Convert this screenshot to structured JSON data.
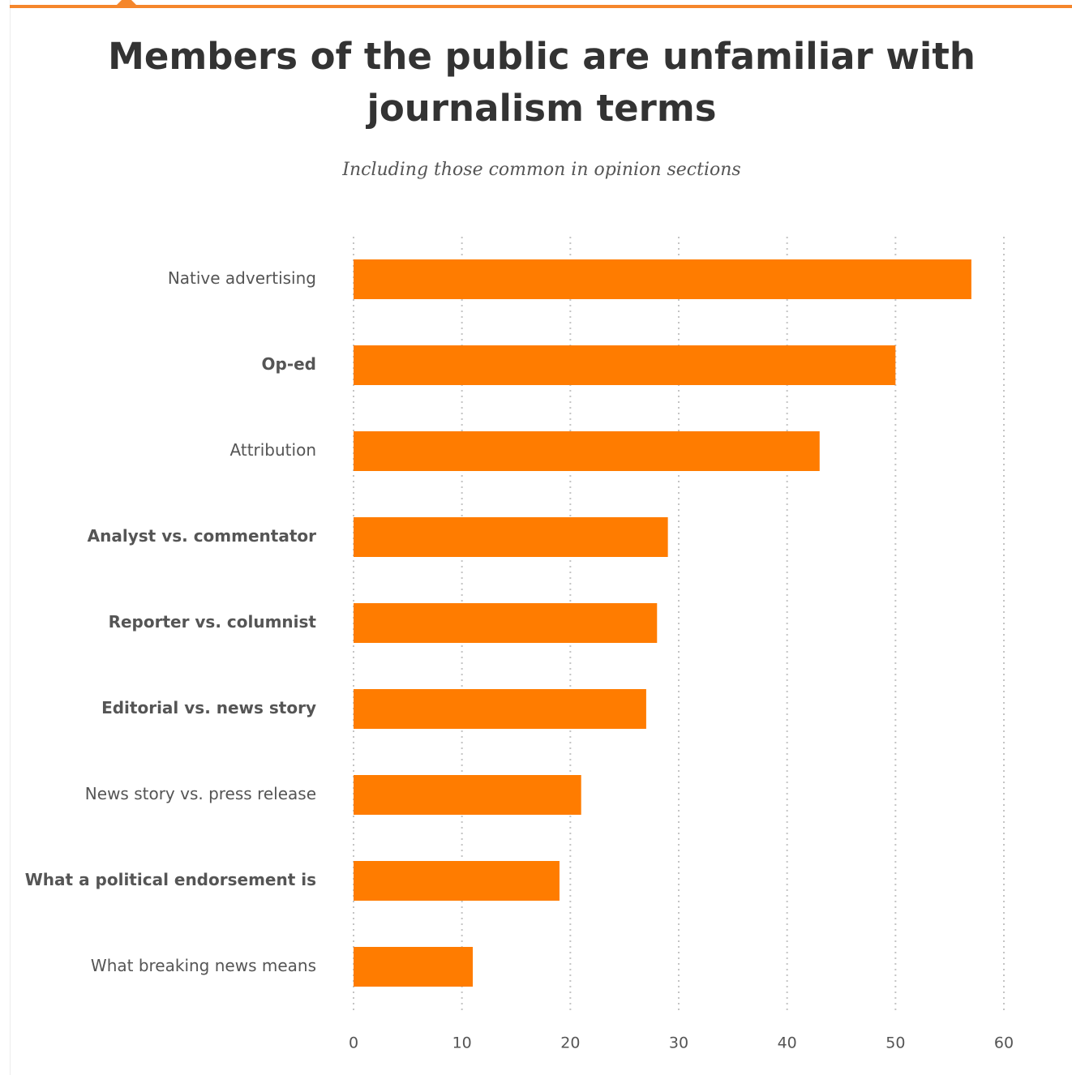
{
  "chart_data": {
    "type": "bar",
    "orientation": "horizontal",
    "title": "Members of the public are unfamiliar with journalism terms",
    "subtitle": "Including those common in opinion sections",
    "categories": [
      "Native advertising",
      "Op-ed",
      "Attribution",
      "Analyst vs. commentator",
      "Reporter vs. columnist",
      "Editorial vs. news story",
      "News story vs. press release",
      "What a political endorsement is",
      "What breaking news means"
    ],
    "emphasized_categories": [
      "Op-ed",
      "Analyst vs. commentator",
      "Reporter vs. columnist",
      "Editorial vs. news story",
      "What a political endorsement is"
    ],
    "values": [
      57,
      50,
      43,
      29,
      28,
      27,
      21,
      19,
      11
    ],
    "xlim": [
      0,
      60
    ],
    "xticks": [
      0,
      10,
      20,
      30,
      40,
      50,
      60
    ],
    "xtick_labels": [
      "0",
      "10",
      "20",
      "30",
      "40",
      "50",
      "60"
    ],
    "grid": "vertical dotted",
    "xlabel": "",
    "ylabel": "",
    "legend": "none",
    "bar_color": "#ff7c00",
    "accent_color": "#f5862b"
  }
}
